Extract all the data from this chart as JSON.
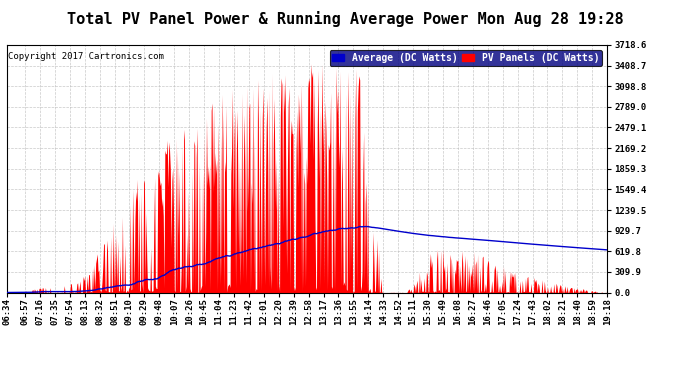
{
  "title": "Total PV Panel Power & Running Average Power Mon Aug 28 19:28",
  "copyright": "Copyright 2017 Cartronics.com",
  "legend_blue": "Average (DC Watts)",
  "legend_red": "PV Panels (DC Watts)",
  "y_max": 3718.6,
  "yticks": [
    0.0,
    309.9,
    619.8,
    929.7,
    1239.5,
    1549.4,
    1859.3,
    2169.2,
    2479.1,
    2789.0,
    3098.8,
    3408.7,
    3718.6
  ],
  "background_color": "#ffffff",
  "plot_bg_color": "#ffffff",
  "grid_color": "#aaaaaa",
  "red_color": "#ff0000",
  "blue_color": "#0000cc",
  "title_fontsize": 11,
  "tick_fontsize": 6.5,
  "xtick_labels": [
    "06:34",
    "06:57",
    "07:16",
    "07:35",
    "07:54",
    "08:13",
    "08:32",
    "08:51",
    "09:10",
    "09:29",
    "09:48",
    "10:07",
    "10:26",
    "10:45",
    "11:04",
    "11:23",
    "11:42",
    "12:01",
    "12:20",
    "12:39",
    "12:58",
    "13:17",
    "13:36",
    "13:55",
    "14:14",
    "14:33",
    "14:52",
    "15:11",
    "15:30",
    "15:49",
    "16:08",
    "16:27",
    "16:46",
    "17:05",
    "17:24",
    "17:43",
    "18:02",
    "18:21",
    "18:40",
    "18:59",
    "19:18"
  ]
}
